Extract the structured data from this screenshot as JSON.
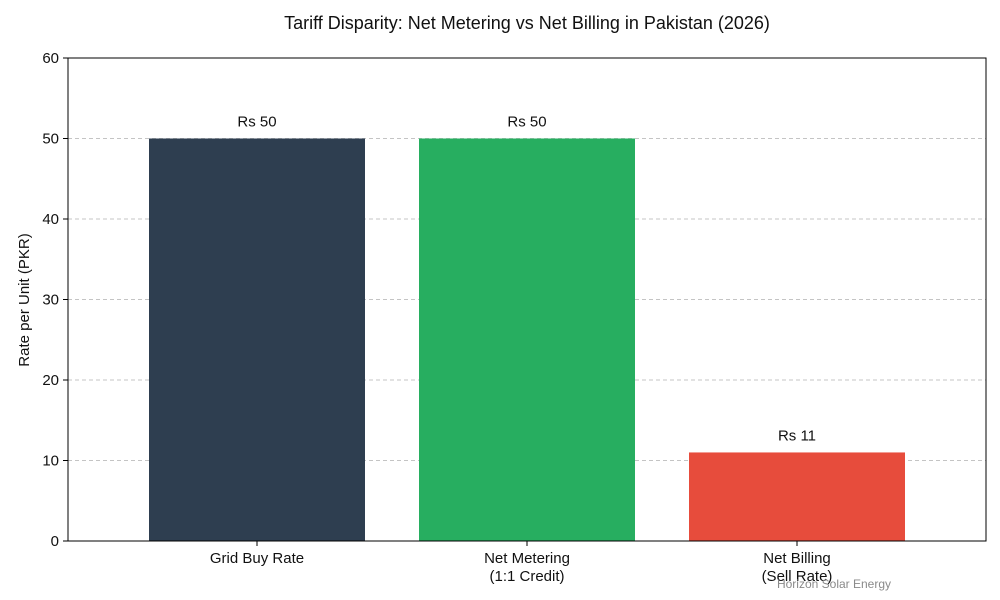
{
  "chart_data": {
    "type": "bar",
    "title": "Tariff Disparity: Net Metering vs Net Billing in Pakistan (2026)",
    "xlabel": "",
    "ylabel": "Rate per Unit (PKR)",
    "ylim": [
      0,
      60
    ],
    "yticks": [
      0,
      10,
      20,
      30,
      40,
      50,
      60
    ],
    "grid": true,
    "categories": [
      [
        "Grid Buy Rate"
      ],
      [
        "Net Metering",
        "(1:1 Credit)"
      ],
      [
        "Net Billing",
        "(Sell Rate)"
      ]
    ],
    "values": [
      50,
      50,
      11
    ],
    "data_labels": [
      "Rs 50",
      "Rs 50",
      "Rs 11"
    ],
    "colors": [
      "#2e3e50",
      "#27ae60",
      "#e74c3c"
    ],
    "watermark": "Horizon Solar Energy"
  }
}
